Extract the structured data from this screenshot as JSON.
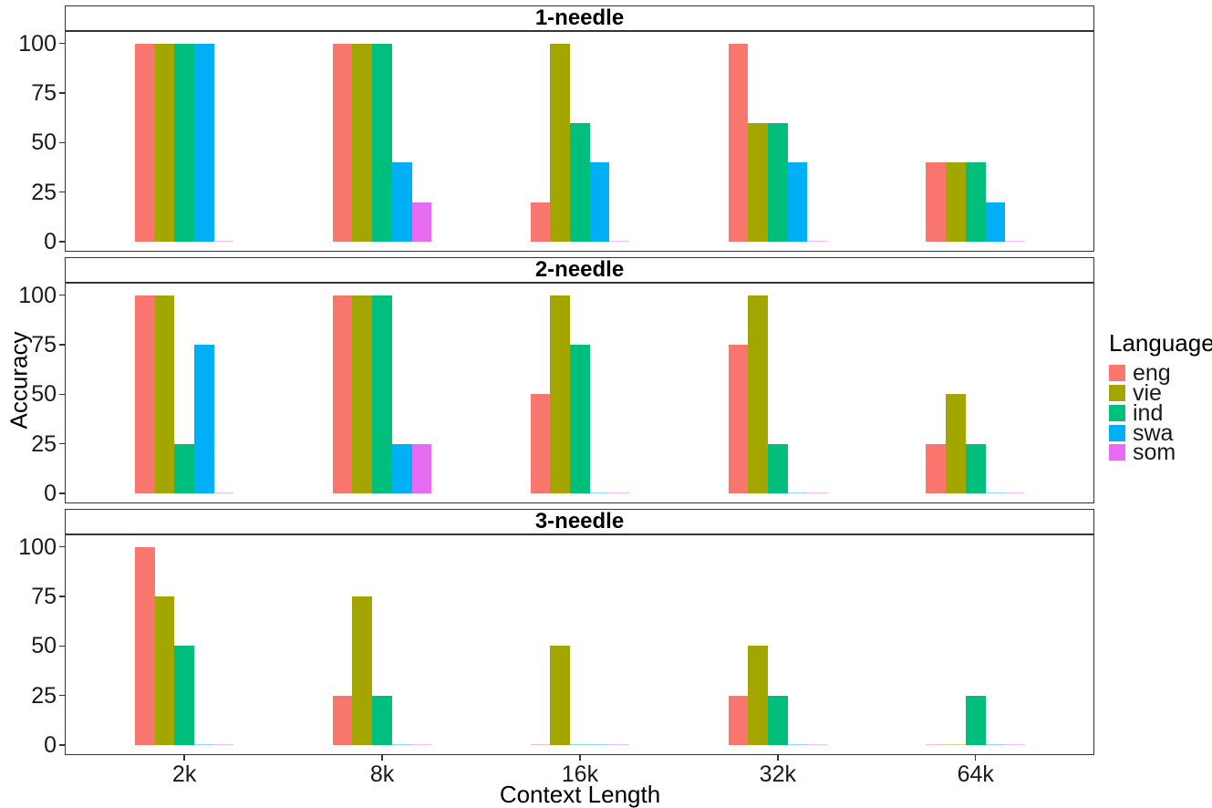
{
  "chart_data": {
    "type": "bar",
    "title": "",
    "xlabel": "Context Length",
    "ylabel": "Accuracy",
    "categories": [
      "2k",
      "8k",
      "16k",
      "32k",
      "64k"
    ],
    "y_ticks": [
      0,
      25,
      50,
      75,
      100
    ],
    "ylim": [
      0,
      100
    ],
    "grid": false,
    "legend": {
      "title": "Language",
      "position": "right",
      "entries": [
        "eng",
        "vie",
        "ind",
        "swa",
        "som"
      ]
    },
    "series_names": [
      "eng",
      "vie",
      "ind",
      "swa",
      "som"
    ],
    "series_colors": [
      "#F8766D",
      "#A3A500",
      "#00BF7D",
      "#00B0F6",
      "#E76BF3"
    ],
    "facets": [
      {
        "label": "1-needle",
        "series": [
          {
            "name": "eng",
            "values": [
              100,
              100,
              20,
              100,
              40
            ]
          },
          {
            "name": "vie",
            "values": [
              100,
              100,
              100,
              60,
              40
            ]
          },
          {
            "name": "ind",
            "values": [
              100,
              100,
              60,
              60,
              40
            ]
          },
          {
            "name": "swa",
            "values": [
              100,
              40,
              40,
              40,
              20
            ]
          },
          {
            "name": "som",
            "values": [
              0,
              20,
              0,
              0,
              0
            ]
          }
        ]
      },
      {
        "label": "2-needle",
        "series": [
          {
            "name": "eng",
            "values": [
              100,
              100,
              50,
              75,
              25
            ]
          },
          {
            "name": "vie",
            "values": [
              100,
              100,
              100,
              100,
              50
            ]
          },
          {
            "name": "ind",
            "values": [
              25,
              100,
              75,
              25,
              25
            ]
          },
          {
            "name": "swa",
            "values": [
              75,
              25,
              0,
              0,
              0
            ]
          },
          {
            "name": "som",
            "values": [
              0,
              25,
              0,
              0,
              0
            ]
          }
        ]
      },
      {
        "label": "3-needle",
        "series": [
          {
            "name": "eng",
            "values": [
              100,
              25,
              0,
              25,
              0
            ]
          },
          {
            "name": "vie",
            "values": [
              75,
              75,
              50,
              50,
              0
            ]
          },
          {
            "name": "ind",
            "values": [
              50,
              25,
              0,
              25,
              25
            ]
          },
          {
            "name": "swa",
            "values": [
              0,
              0,
              0,
              0,
              0
            ]
          },
          {
            "name": "som",
            "values": [
              0,
              0,
              0,
              0,
              0
            ]
          }
        ]
      }
    ]
  }
}
